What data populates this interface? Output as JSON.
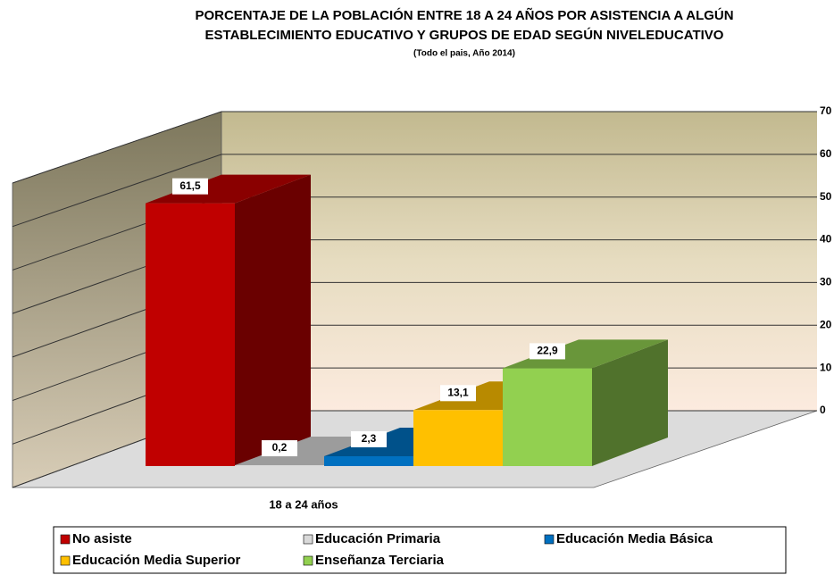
{
  "chart_data": {
    "type": "bar3d",
    "title": [
      "PORCENTAJE DE LA POBLACIÓN ENTRE 18 A 24 AÑOS POR ASISTENCIA A ALGÚN",
      "ESTABLECIMIENTO EDUCATIVO Y GRUPOS DE EDAD SEGÚN NIVELEDUCATIVO"
    ],
    "subtitle": "(Todo el pais, Año 2014)",
    "categories": [
      "18 a 24 años"
    ],
    "series": [
      {
        "name": "No asiste",
        "color": "#c00000",
        "values": [
          61.5
        ],
        "value_labels": [
          "61,5"
        ]
      },
      {
        "name": "Educación Primaria",
        "color": "#d9d9d9",
        "values": [
          0.2
        ],
        "value_labels": [
          "0,2"
        ]
      },
      {
        "name": "Educación Media Básica",
        "color": "#0070c0",
        "values": [
          2.3
        ],
        "value_labels": [
          "2,3"
        ]
      },
      {
        "name": "Educación Media Superior",
        "color": "#ffc000",
        "values": [
          13.1
        ],
        "value_labels": [
          "13,1"
        ]
      },
      {
        "name": "Enseñanza Terciaria",
        "color": "#92d050",
        "values": [
          22.9
        ],
        "value_labels": [
          "22,9"
        ]
      }
    ],
    "ylim": [
      0,
      70
    ],
    "yticks": [
      0,
      10,
      20,
      30,
      40,
      50,
      60,
      70
    ],
    "grid": true
  }
}
